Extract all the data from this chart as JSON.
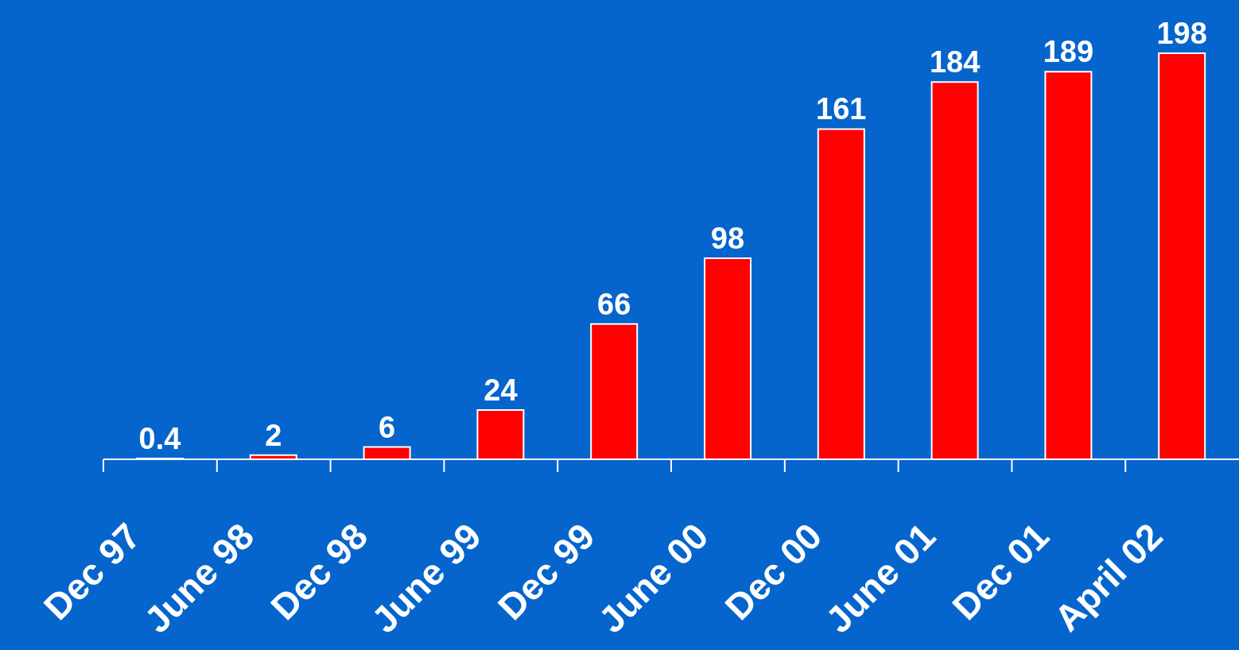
{
  "chart_data": {
    "type": "bar",
    "categories": [
      "Dec 97",
      "June 98",
      "Dec 98",
      "June 99",
      "Dec 99",
      "June 00",
      "Dec 00",
      "June 01",
      "Dec 01",
      "April 02"
    ],
    "values": [
      0.4,
      2,
      6,
      24,
      66,
      98,
      161,
      184,
      189,
      198
    ],
    "color": "#ff0000",
    "data_labels": true
  }
}
